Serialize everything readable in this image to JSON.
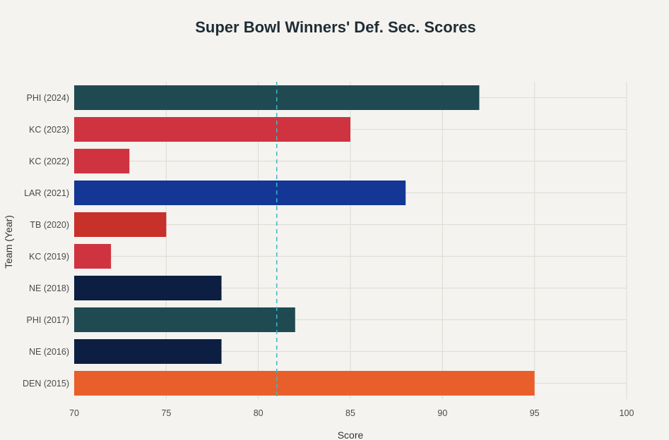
{
  "chart_data": {
    "type": "bar",
    "orientation": "horizontal",
    "title": "Super Bowl Winners' Def. Sec. Scores",
    "xlabel": "Score",
    "ylabel": "Team (Year)",
    "xlim": [
      70,
      100
    ],
    "xticks": [
      "70",
      "75",
      "80",
      "85",
      "90",
      "95",
      "100"
    ],
    "grid": true,
    "legend": "none",
    "reference_line": {
      "value": 81,
      "style": "dashed",
      "color": "#3fb6c4"
    },
    "categories": [
      "PHI (2024)",
      "KC (2023)",
      "KC (2022)",
      "LAR (2021)",
      "TB (2020)",
      "KC (2019)",
      "NE (2018)",
      "PHI (2017)",
      "NE (2016)",
      "DEN (2015)"
    ],
    "values": [
      92,
      85,
      73,
      88,
      75,
      72,
      78,
      82,
      78,
      95
    ],
    "colors": [
      "#1f4a52",
      "#d03340",
      "#d03340",
      "#143796",
      "#c8302a",
      "#d03340",
      "#0c1f42",
      "#1f4a52",
      "#0c1f42",
      "#e85f2c"
    ]
  }
}
